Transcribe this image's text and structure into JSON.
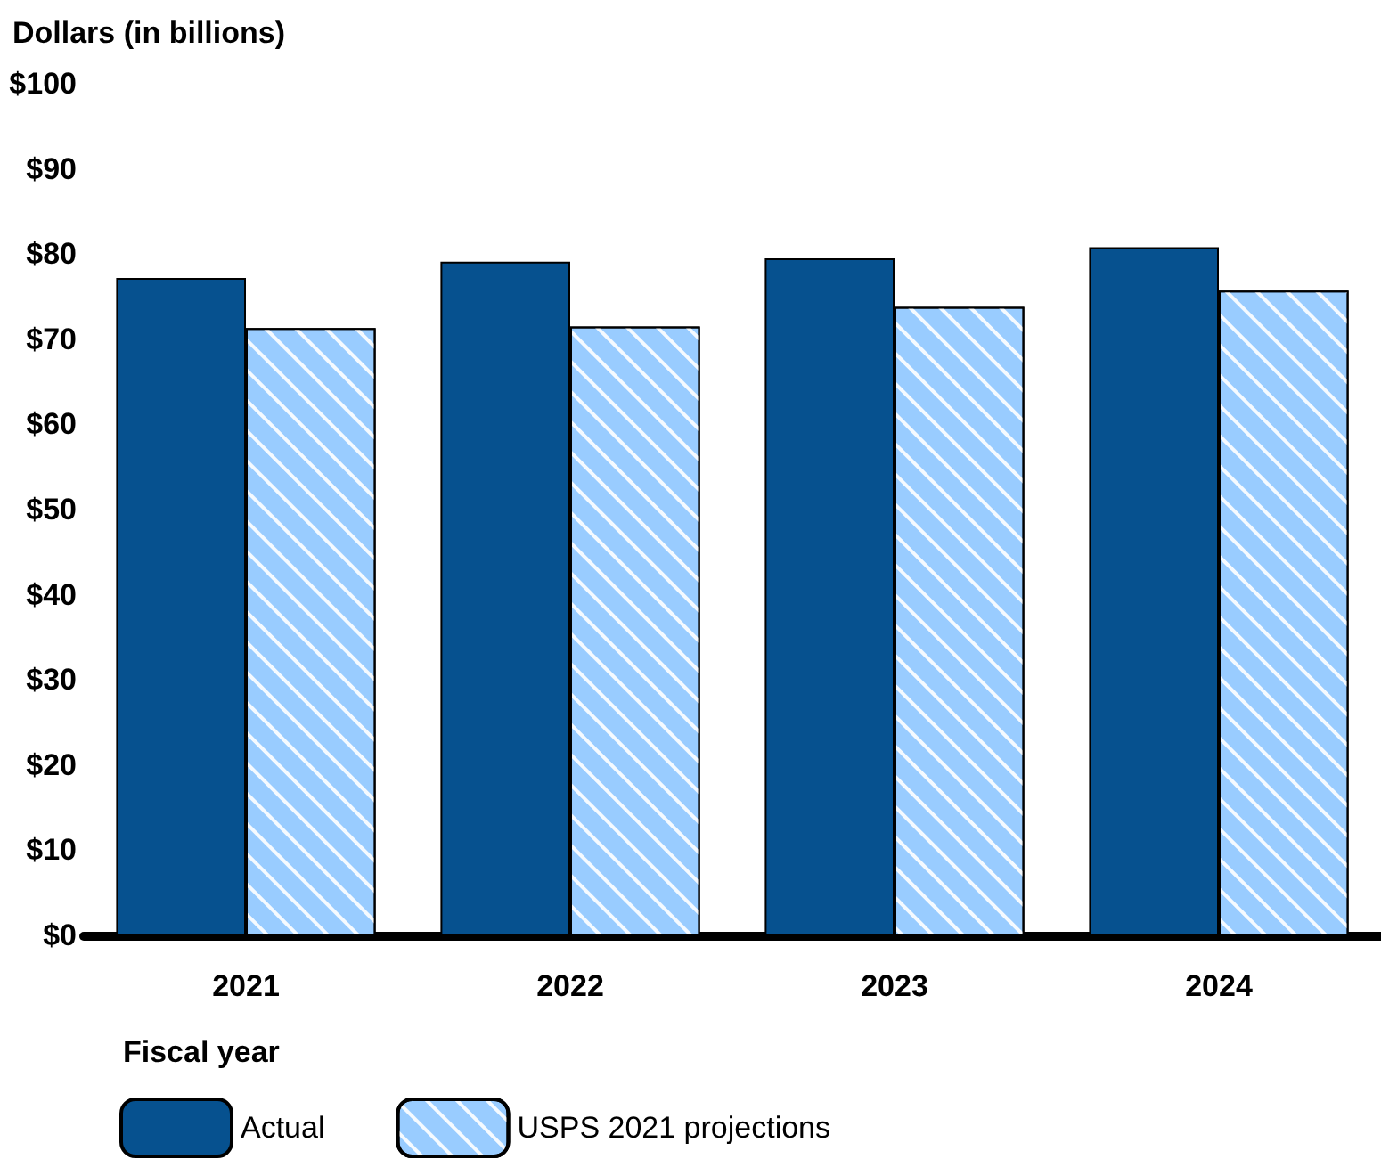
{
  "chart_data": {
    "type": "bar",
    "ylabel": "Dollars (in billions)",
    "xlabel": "Fiscal year",
    "categories": [
      "2021",
      "2022",
      "2023",
      "2024"
    ],
    "series": [
      {
        "name": "Actual",
        "color": "#06518f",
        "values": [
          77.2,
          79.1,
          79.5,
          80.8
        ]
      },
      {
        "name": "USPS 2021 projections",
        "color": "#99ccff",
        "values": [
          71.3,
          71.5,
          73.8,
          75.7
        ]
      }
    ],
    "ylim": [
      0,
      100
    ],
    "yticks": [
      {
        "value": 0,
        "label": "$0"
      },
      {
        "value": 10,
        "label": "$10"
      },
      {
        "value": 20,
        "label": "$20"
      },
      {
        "value": 30,
        "label": "$30"
      },
      {
        "value": 40,
        "label": "$40"
      },
      {
        "value": 50,
        "label": "$50"
      },
      {
        "value": 60,
        "label": "$60"
      },
      {
        "value": 70,
        "label": "$70"
      },
      {
        "value": 80,
        "label": "$80"
      },
      {
        "value": 90,
        "label": "$90"
      },
      {
        "value": 100,
        "label": "$100"
      }
    ],
    "grid": false,
    "legend": "bottom left"
  }
}
